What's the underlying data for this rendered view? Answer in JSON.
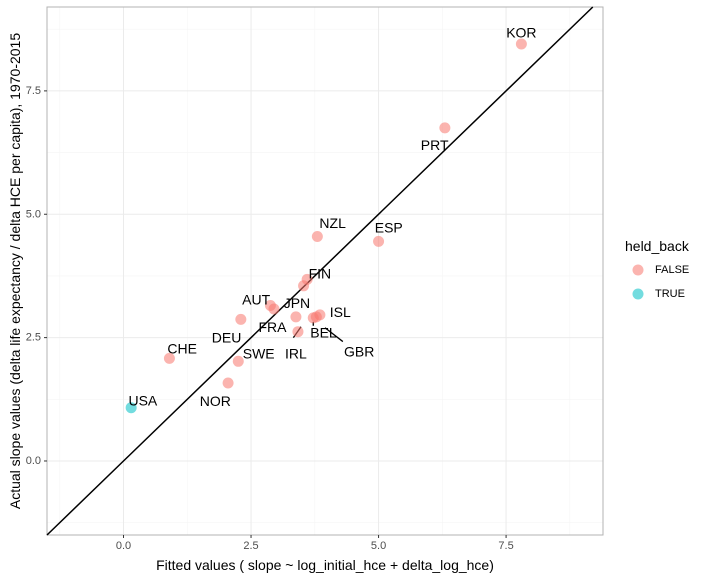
{
  "chart_data": {
    "type": "scatter",
    "title": "",
    "xlabel": "Fitted values ( slope ~ log_initial_hce + delta_log_hce)",
    "ylabel": "Actual slope values (delta life expectancy / delta HCE per capita), 1970-2015",
    "xlim": [
      -1.5,
      9.4
    ],
    "ylim": [
      -1.5,
      9.2
    ],
    "x_ticks": [
      0.0,
      2.5,
      5.0,
      7.5
    ],
    "x_tick_labels": [
      "0.0",
      "2.5",
      "5.0",
      "7.5"
    ],
    "y_ticks": [
      0.0,
      2.5,
      5.0,
      7.5
    ],
    "y_tick_labels": [
      "0.0",
      "2.5",
      "5.0",
      "7.5"
    ],
    "grid": true,
    "reference_line": {
      "type": "identity",
      "slope": 1,
      "intercept": 0
    },
    "legend": {
      "title": "held_back",
      "position": "right",
      "entries": [
        {
          "label": "FALSE",
          "color": "#F8766D"
        },
        {
          "label": "TRUE",
          "color": "#00BFC4"
        }
      ]
    },
    "points": [
      {
        "label": "KOR",
        "x": 7.8,
        "y": 8.45,
        "held_back": "FALSE"
      },
      {
        "label": "PRT",
        "x": 6.3,
        "y": 6.75,
        "held_back": "FALSE"
      },
      {
        "label": "ESP",
        "x": 5.0,
        "y": 4.45,
        "held_back": "FALSE"
      },
      {
        "label": "NZL",
        "x": 3.8,
        "y": 4.55,
        "held_back": "FALSE"
      },
      {
        "label": "FIN",
        "x": 3.6,
        "y": 3.68,
        "held_back": "FALSE"
      },
      {
        "label": "FIN2",
        "x": 3.53,
        "y": 3.55,
        "held_back": "FALSE",
        "hidden_label": true
      },
      {
        "label": "AUT",
        "x": 2.88,
        "y": 3.15,
        "held_back": "FALSE"
      },
      {
        "label": "JPN",
        "x": 2.95,
        "y": 3.08,
        "held_back": "FALSE"
      },
      {
        "label": "ISL",
        "x": 3.85,
        "y": 2.96,
        "held_back": "FALSE"
      },
      {
        "label": "BEL",
        "x": 3.72,
        "y": 2.9,
        "held_back": "FALSE"
      },
      {
        "label": "GBR",
        "x": 3.78,
        "y": 2.92,
        "held_back": "FALSE"
      },
      {
        "label": "FRA",
        "x": 2.3,
        "y": 2.87,
        "held_back": "FALSE"
      },
      {
        "label": "IRL",
        "x": 3.38,
        "y": 2.92,
        "held_back": "FALSE"
      },
      {
        "label": "DEU",
        "x": 3.42,
        "y": 2.62,
        "held_back": "FALSE"
      },
      {
        "label": "CHE",
        "x": 0.9,
        "y": 2.08,
        "held_back": "FALSE"
      },
      {
        "label": "SWE",
        "x": 2.25,
        "y": 2.02,
        "held_back": "FALSE"
      },
      {
        "label": "NOR",
        "x": 2.05,
        "y": 1.58,
        "held_back": "FALSE"
      },
      {
        "label": "USA",
        "x": 0.15,
        "y": 1.08,
        "held_back": "TRUE"
      }
    ],
    "text_labels": [
      {
        "text": "KOR",
        "x": 7.8,
        "y": 8.68
      },
      {
        "text": "PRT",
        "x": 6.1,
        "y": 6.4
      },
      {
        "text": "ESP",
        "x": 5.2,
        "y": 4.73
      },
      {
        "text": "NZL",
        "x": 4.1,
        "y": 4.82
      },
      {
        "text": "FIN",
        "x": 3.85,
        "y": 3.8
      },
      {
        "text": "AUT",
        "x": 2.6,
        "y": 3.27
      },
      {
        "text": "JPN",
        "x": 3.4,
        "y": 3.2
      },
      {
        "text": "ISL",
        "x": 4.25,
        "y": 3.02
      },
      {
        "text": "BEL",
        "x": 3.92,
        "y": 2.6
      },
      {
        "text": "FRA",
        "x": 2.92,
        "y": 2.72
      },
      {
        "text": "DEU",
        "x": 2.02,
        "y": 2.5
      },
      {
        "text": "GBR",
        "x": 4.62,
        "y": 2.22
      },
      {
        "text": "IRL",
        "x": 3.38,
        "y": 2.18
      },
      {
        "text": "CHE",
        "x": 1.15,
        "y": 2.28
      },
      {
        "text": "SWE",
        "x": 2.65,
        "y": 2.18
      },
      {
        "text": "NOR",
        "x": 1.8,
        "y": 1.22
      },
      {
        "text": "USA",
        "x": 0.38,
        "y": 1.23
      }
    ],
    "label_segments": [
      {
        "from": [
          3.95,
          2.7
        ],
        "to": [
          4.3,
          2.42
        ]
      },
      {
        "from": [
          3.48,
          2.72
        ],
        "to": [
          3.33,
          2.5
        ]
      },
      {
        "from": [
          3.72,
          2.82
        ],
        "to": [
          3.72,
          2.74
        ]
      }
    ]
  }
}
